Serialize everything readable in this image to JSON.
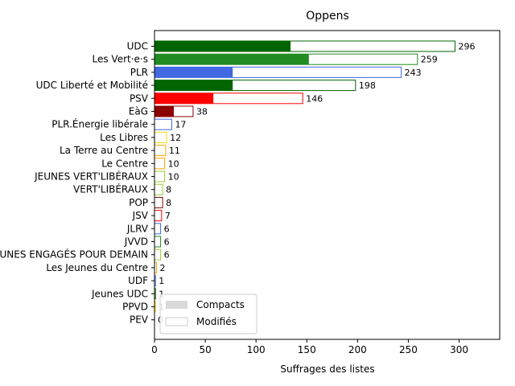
{
  "chart_data": {
    "type": "bar",
    "orientation": "horizontal",
    "title": "Oppens",
    "xlabel": "Suffrages des listes",
    "ylabel": "",
    "xlim": [
      0,
      340
    ],
    "xticks": [
      0,
      50,
      100,
      150,
      200,
      250,
      300
    ],
    "legend": {
      "placement": "lower-left",
      "entries": [
        {
          "name": "Compacts",
          "style": "filled",
          "color": "#d9d9d9"
        },
        {
          "name": "Modifiés",
          "style": "outline",
          "color": "#cccccc"
        }
      ]
    },
    "categories": [
      {
        "label": "UDC",
        "total": 296,
        "compact": 134,
        "color": "#006400"
      },
      {
        "label": "Les Vert·e·s",
        "total": 259,
        "compact": 152,
        "color": "#228b22"
      },
      {
        "label": "PLR",
        "total": 243,
        "compact": 77,
        "color": "#4169e1"
      },
      {
        "label": "UDC Liberté et Mobilité",
        "total": 198,
        "compact": 77,
        "color": "#006400"
      },
      {
        "label": "PSV",
        "total": 146,
        "compact": 58,
        "color": "#ff0000"
      },
      {
        "label": "EàG",
        "total": 38,
        "compact": 19,
        "color": "#8b0000"
      },
      {
        "label": "PLR.Énergie libérale",
        "total": 17,
        "compact": 0,
        "color": "#4169e1"
      },
      {
        "label": "Les Libres",
        "total": 12,
        "compact": 0,
        "color": "#ffd700"
      },
      {
        "label": "La Terre au Centre",
        "total": 11,
        "compact": 0,
        "color": "#ffa500"
      },
      {
        "label": "Le Centre",
        "total": 10,
        "compact": 0,
        "color": "#ffa500"
      },
      {
        "label": "JEUNES VERT'LIBÉRAUX",
        "total": 10,
        "compact": 0,
        "color": "#9acd32"
      },
      {
        "label": "VERT'LIBÉRAUX",
        "total": 8,
        "compact": 0,
        "color": "#9acd32"
      },
      {
        "label": "POP",
        "total": 8,
        "compact": 0,
        "color": "#8b0000"
      },
      {
        "label": "JSV",
        "total": 7,
        "compact": 0,
        "color": "#ff0000"
      },
      {
        "label": "JLRV",
        "total": 6,
        "compact": 0,
        "color": "#4169e1"
      },
      {
        "label": "JVVD",
        "total": 6,
        "compact": 0,
        "color": "#228b22"
      },
      {
        "label": "JEUNES ENGAGÉS POUR DEMAIN",
        "total": 6,
        "compact": 0,
        "color": "#9acd32"
      },
      {
        "label": "Les Jeunes du Centre",
        "total": 2,
        "compact": 0,
        "color": "#ffa500"
      },
      {
        "label": "UDF",
        "total": 1,
        "compact": 0,
        "color": "#4169e1"
      },
      {
        "label": "Jeunes UDC",
        "total": 1,
        "compact": 0,
        "color": "#006400"
      },
      {
        "label": "PPVD",
        "total": 1,
        "compact": 0,
        "color": "#ffd700"
      },
      {
        "label": "PEV",
        "total": 0,
        "compact": 0,
        "color": "#ffd700"
      }
    ]
  }
}
